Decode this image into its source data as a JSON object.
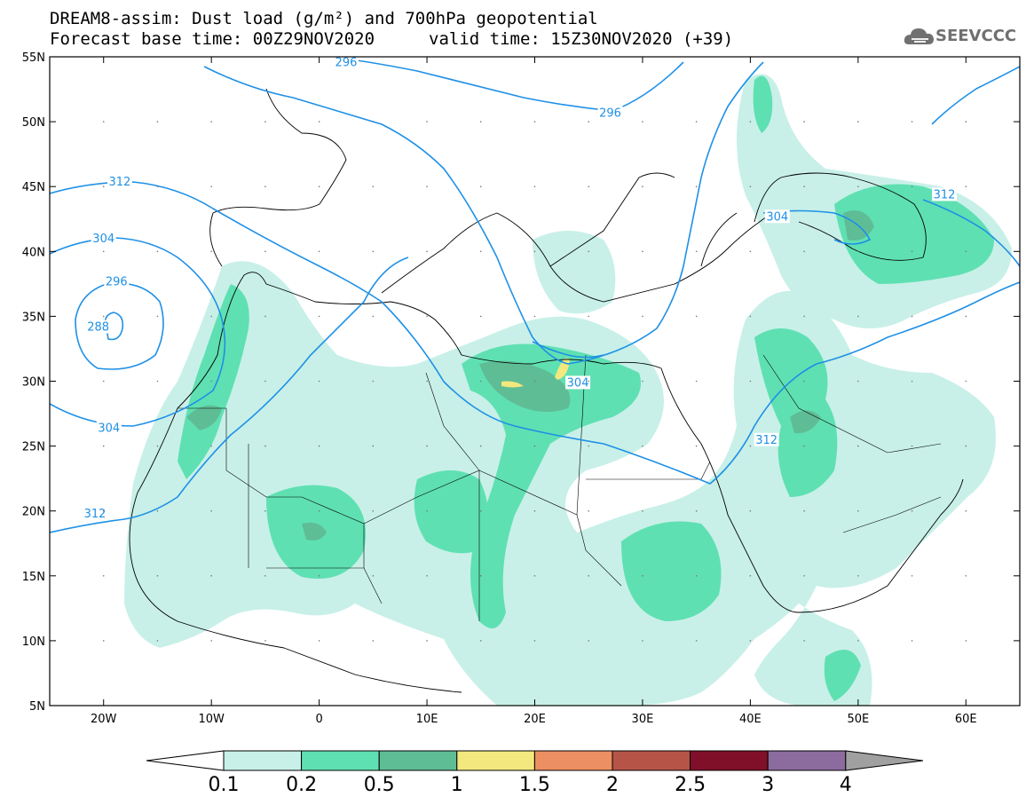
{
  "title": {
    "line1": "DREAM8-assim: Dust load (g/m²) and 700hPa geopotential",
    "line2": "Forecast base time: 00Z29NOV2020",
    "valid": "valid time: 15Z30NOV2020 (+39)"
  },
  "logo": {
    "text": "SEEVCCC",
    "icon": "cloud-icon"
  },
  "map": {
    "lat_range": [
      5,
      55
    ],
    "lon_range": [
      -25,
      65
    ],
    "lat_ticks": [
      "55N",
      "50N",
      "45N",
      "40N",
      "35N",
      "30N",
      "25N",
      "20N",
      "15N",
      "10N",
      "5N"
    ],
    "lon_ticks": [
      "20W",
      "10W",
      "0",
      "10E",
      "20E",
      "30E",
      "40E",
      "50E",
      "60E"
    ]
  },
  "contours": {
    "color": "#1e90e6",
    "labels": [
      {
        "text": "296",
        "lon": 2.5,
        "lat": 54.5
      },
      {
        "text": "296",
        "lon": 2.5,
        "lat": 54.5
      },
      {
        "text": "296",
        "lon": 27,
        "lat": 50.6
      },
      {
        "text": "312",
        "lon": 67.5,
        "lat": 50.2
      },
      {
        "text": "312",
        "lon": -18.5,
        "lat": 45.3
      },
      {
        "text": "312",
        "lon": 58,
        "lat": 44.3
      },
      {
        "text": "304",
        "lon": 42.5,
        "lat": 42.6
      },
      {
        "text": "304",
        "lon": -20,
        "lat": 40.9
      },
      {
        "text": "296",
        "lon": -18.8,
        "lat": 37.6
      },
      {
        "text": "288",
        "lon": -20.5,
        "lat": 34.1
      },
      {
        "text": "304",
        "lon": 24,
        "lat": 29.8
      },
      {
        "text": "304",
        "lon": -19.5,
        "lat": 26.3
      },
      {
        "text": "312",
        "lon": 41.5,
        "lat": 25.4
      },
      {
        "text": "312",
        "lon": -20.8,
        "lat": 19.7
      }
    ]
  },
  "colorbar": {
    "labels": [
      "0.1",
      "0.2",
      "0.5",
      "1",
      "1.5",
      "2",
      "2.5",
      "3",
      "4"
    ],
    "colors": [
      "#c8f0e8",
      "#5fe0b2",
      "#5fbd96",
      "#f2e87e",
      "#ec8f62",
      "#b65547",
      "#80102a",
      "#8c6b9e"
    ],
    "under_color": "#ffffff",
    "over_color": "#a0a0a0"
  },
  "dust_levels": {
    "low": "#c8f0e8",
    "mid": "#5fe0b2",
    "high": "#5fbd96",
    "peak": "#f2e87e"
  }
}
